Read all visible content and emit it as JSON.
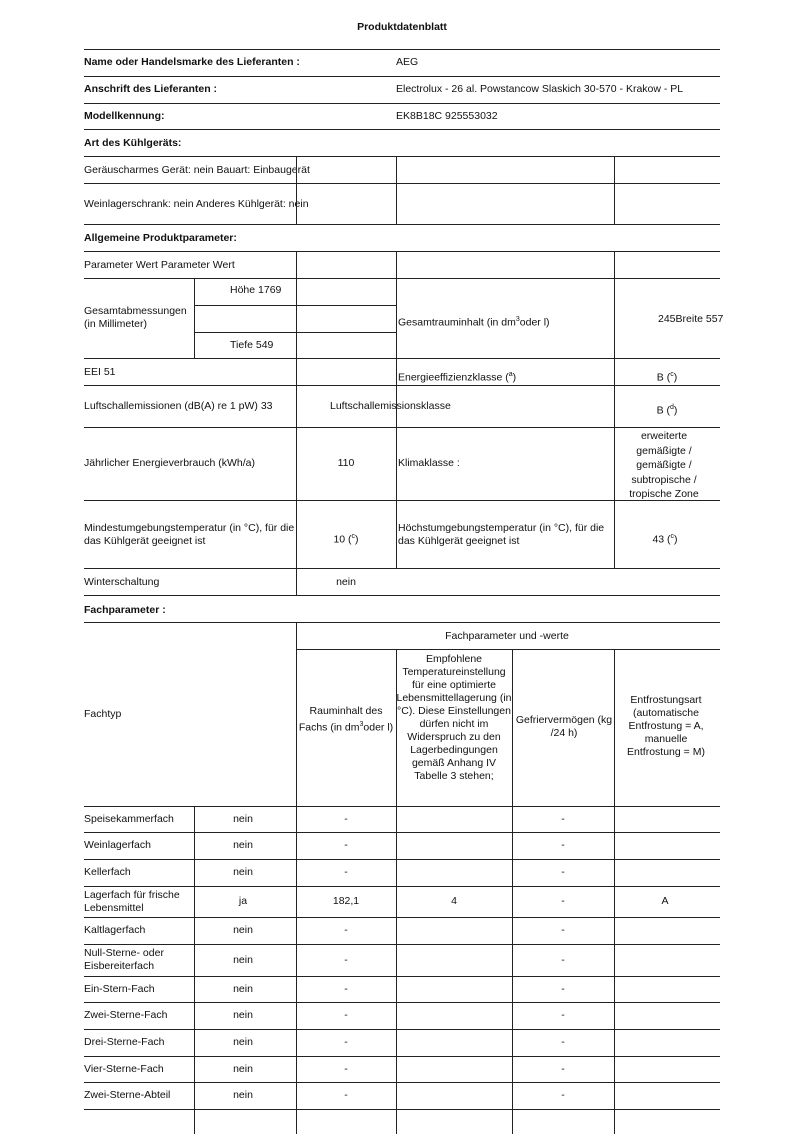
{
  "title": "Produktdatenblatt",
  "supplier": {
    "name_label": "Name oder Handelsmarke des Lieferanten :",
    "name": "AEG",
    "address_label": "Anschrift des Lieferanten :",
    "address": "Electrolux - 26 al. Powstancow Slaskich 30-570 - Krakow - PL",
    "model_label": "Modellkennung:",
    "model": "EK8B18C 925553032"
  },
  "type": {
    "heading": "Art des Kühlgeräts:",
    "row1": "Geräuscharmes Gerät: nein Bauart: Einbaugerät",
    "row2": "Weinlagerschrank: nein Anderes Kühlgerät: nein"
  },
  "general": {
    "heading": "Allgemeine Produktparameter:",
    "header_row": "Parameter Wert Parameter Wert",
    "dims_label": "Gesamtabmessungen (in Millimeter)",
    "hoehe": "Höhe 1769",
    "tiefe": "Tiefe 549",
    "volume_label": "Gesamtrauminhalt (in dm",
    "volume_label_sup": "3",
    "volume_label_end": "oder l)",
    "volume_value": "245Breite 557",
    "eei": "EEI 51",
    "eclass_label": "Energieeffizienzklasse (",
    "eclass_note": "a",
    "eclass_value": "B (",
    "eclass_value_note": "c",
    "noise_label": "Luftschallemissionen (dB(A) re 1 pW) 33",
    "noise_class_label": "Luftschallemissionsklasse",
    "noise_class_value": "B (",
    "noise_class_note": "d",
    "energy_label": "Jährlicher Energieverbrauch (kWh/a)",
    "energy_value": "110",
    "climate_label": "Klimaklasse :",
    "climate_value": "erweiterte gemäßigte / gemäßigte / subtropische / tropische Zone",
    "min_temp_label": "Mindestumgebungstemperatur (in °C), für die das Kühlgerät geeignet ist",
    "min_temp_value": "10 (",
    "min_temp_note": "c",
    "max_temp_label": "Höchstumgebungstemperatur (in °C), für die das Kühlgerät geeignet ist",
    "max_temp_value": "43 (",
    "max_temp_note": "c",
    "winter_label": "Winterschaltung",
    "winter_value": "nein"
  },
  "compartments": {
    "heading": "Fachparameter :",
    "group_header": "Fachparameter und -werte",
    "col_type": "Fachtyp",
    "col_volume": "Rauminhalt des Fachs (in dm",
    "col_volume_sup": "3",
    "col_volume_end": "oder l)",
    "col_temp": "Empfohlene Temperatureinstellung für eine optimierte Lebensmittellagerung (in °C). Diese Einstellungen dürfen nicht im Widerspruch zu den Lagerbedingungen gemäß Anhang IV Tabelle 3 stehen;",
    "col_freeze": "Gefriervermögen (kg /24 h)",
    "col_defrost": "Entfrostungsart (automatische Entfrostung = A, manuelle Entfrostung = M)",
    "rows": [
      {
        "name": "Speisekammerfach",
        "present": "nein",
        "volume": "-",
        "temp": "",
        "freeze": "-",
        "defrost": ""
      },
      {
        "name": "Weinlagerfach",
        "present": "nein",
        "volume": "-",
        "temp": "",
        "freeze": "-",
        "defrost": ""
      },
      {
        "name": "Kellerfach",
        "present": "nein",
        "volume": "-",
        "temp": "",
        "freeze": "-",
        "defrost": ""
      },
      {
        "name": "Lagerfach für frische Lebensmittel",
        "present": "ja",
        "volume": "182,1",
        "temp": "4",
        "freeze": "-",
        "defrost": "A"
      },
      {
        "name": "Kaltlagerfach",
        "present": "nein",
        "volume": "-",
        "temp": "",
        "freeze": "-",
        "defrost": ""
      },
      {
        "name": "Null-Sterne- oder Eisbereiterfach",
        "present": "nein",
        "volume": "-",
        "temp": "",
        "freeze": "-",
        "defrost": ""
      },
      {
        "name": "Ein-Stern-Fach",
        "present": "nein",
        "volume": "-",
        "temp": "",
        "freeze": "-",
        "defrost": ""
      },
      {
        "name": "Zwei-Sterne-Fach",
        "present": "nein",
        "volume": "-",
        "temp": "",
        "freeze": "-",
        "defrost": ""
      },
      {
        "name": "Drei-Sterne-Fach",
        "present": "nein",
        "volume": "-",
        "temp": "",
        "freeze": "-",
        "defrost": ""
      },
      {
        "name": "Vier-Sterne-Fach",
        "present": "nein",
        "volume": "-",
        "temp": "",
        "freeze": "-",
        "defrost": ""
      },
      {
        "name": "Zwei-Sterne-Abteil",
        "present": "nein",
        "volume": "-",
        "temp": "",
        "freeze": "-",
        "defrost": ""
      }
    ]
  }
}
